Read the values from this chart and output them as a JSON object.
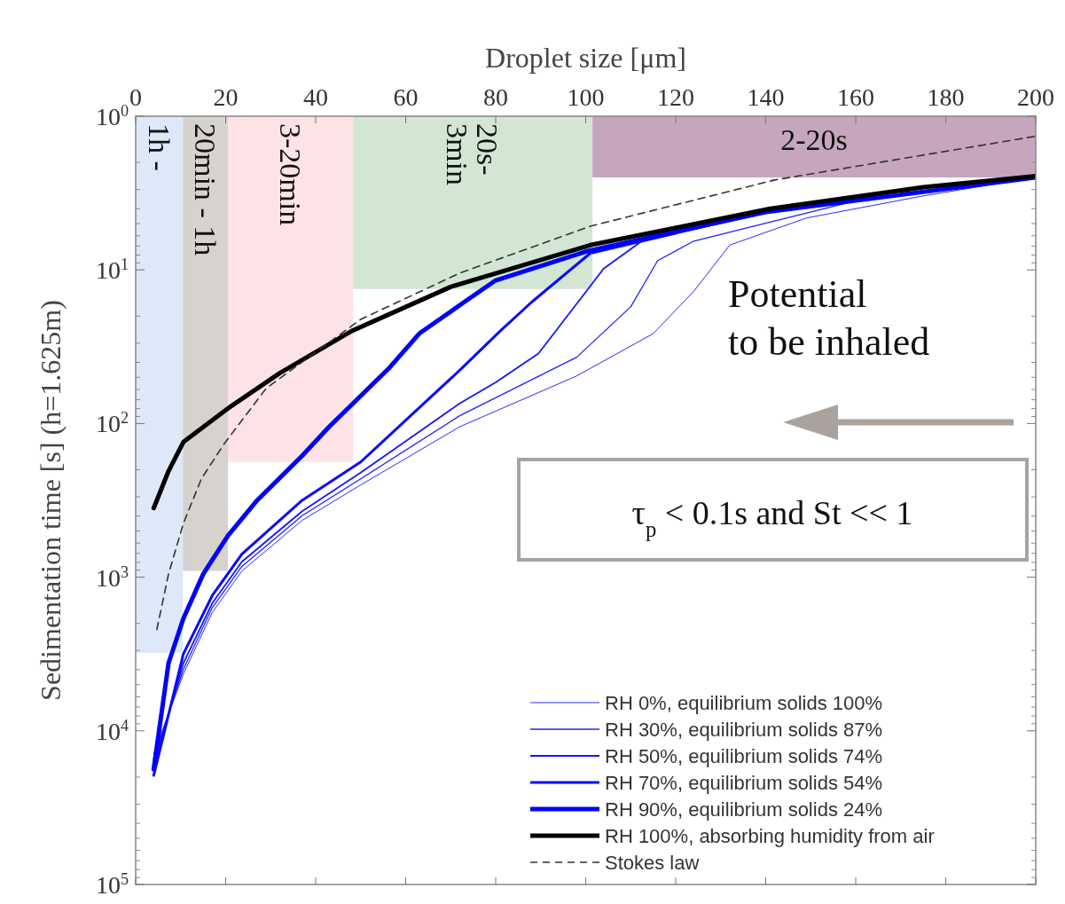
{
  "chart_data": {
    "type": "line",
    "xlabel": "Droplet size [μm]",
    "ylabel": "Sedimentation time [s] (h=1.625m)",
    "xlim": [
      0,
      200
    ],
    "xticks": [
      0,
      20,
      40,
      60,
      80,
      100,
      120,
      140,
      160,
      180,
      200
    ],
    "ylim": [
      100000,
      1
    ],
    "log": "y",
    "yticks": [
      {
        "value": 1,
        "label": "10$^{0}$"
      },
      {
        "value": 10,
        "label": "10$^{1}$"
      },
      {
        "value": 100,
        "label": "10$^{2}$"
      },
      {
        "value": 1000,
        "label": "10$^{3}$"
      },
      {
        "value": 10000,
        "label": "10$^{4}$"
      },
      {
        "value": 100000,
        "label": "10$^{5}$"
      }
    ],
    "legend": "bottom right",
    "grid": false,
    "series": [
      {
        "type": "area",
        "color": "#dde8f8",
        "x": [
          0,
          10.5
        ],
        "values": [
          3100,
          3100
        ]
      },
      {
        "type": "area",
        "color": "#d6d2ce",
        "x": [
          10.5,
          20.5
        ],
        "values": [
          910,
          910
        ]
      },
      {
        "type": "area",
        "color": "#fde3e5",
        "x": [
          20.5,
          48.3
        ],
        "values": [
          178,
          178
        ]
      },
      {
        "type": "area",
        "color": "#d2e6d3",
        "x": [
          48.3,
          101.5
        ],
        "values": [
          13.3,
          13.3
        ]
      },
      {
        "type": "area",
        "color": "#c6a6bf",
        "x": [
          101.5,
          200
        ],
        "values": [
          2.5,
          2.5
        ]
      },
      {
        "name": "RH 0%, equilibrium solids 100%",
        "color": "#2a2aff",
        "x": [
          4,
          10.6,
          17,
          23.6,
          37,
          50,
          72,
          98,
          115,
          124,
          132,
          149,
          175,
          200
        ],
        "values": [
          14100,
          4270,
          1700,
          912,
          427,
          251,
          105,
          49,
          26,
          13.8,
          6.9,
          4.6,
          3.3,
          2.5
        ]
      },
      {
        "name": "RH 30%, equilibrium solids 87%",
        "color": "#2020ff",
        "x": [
          4,
          10.6,
          17,
          23.6,
          37,
          50,
          72,
          98,
          110,
          116,
          124,
          160,
          200
        ],
        "values": [
          15100,
          3980,
          1580,
          851,
          398,
          229,
          89,
          37,
          17.4,
          8.7,
          6.5,
          3.55,
          2.5
        ]
      },
      {
        "name": "RH 50%, equilibrium solids 74%",
        "color": "#1414ff",
        "x": [
          4,
          10.6,
          17,
          23.6,
          37,
          50,
          72,
          80,
          89.5,
          104,
          115,
          150,
          200
        ],
        "values": [
          16600,
          3630,
          1480,
          794,
          372,
          209,
          74,
          54,
          35,
          9.8,
          5.75,
          3.8,
          2.5
        ]
      },
      {
        "name": "RH 70%, equilibrium solids 54%",
        "color": "#0a0aff",
        "x": [
          4,
          10.6,
          17,
          23.6,
          37,
          50,
          63,
          72,
          81,
          88,
          101,
          140,
          200
        ],
        "values": [
          19500,
          3160,
          1320,
          708,
          316,
          178,
          79,
          45,
          25,
          16.2,
          7.8,
          4.2,
          2.5
        ]
      },
      {
        "name": "RH 90%, equilibrium solids 24%",
        "color": "#0000ff",
        "x": [
          4,
          7.3,
          10.6,
          15,
          20.5,
          27,
          37,
          43,
          56.5,
          63,
          73,
          80,
          100,
          140,
          200
        ],
        "values": [
          17800,
          3630,
          1860,
          955,
          537,
          316,
          162,
          105,
          43,
          26,
          16.2,
          11.7,
          7.6,
          4.2,
          2.5
        ]
      },
      {
        "name": "RH 100%, absorbing humidity from air",
        "color": "#000000",
        "x": [
          4,
          4.7,
          7.3,
          10.6,
          20.7,
          32,
          48,
          70,
          101,
          141,
          175,
          200
        ],
        "values": [
          355,
          316,
          204,
          132,
          79,
          47,
          25,
          12.9,
          6.9,
          4.0,
          2.9,
          2.45
        ]
      },
      {
        "name": "Stokes law",
        "color": "#333333",
        "line_style": "dashed",
        "x": [
          4.7,
          7.3,
          10.6,
          14.6,
          19.7,
          29,
          50,
          72,
          101,
          142,
          200
        ],
        "values": [
          2190,
          955,
          447,
          229,
          135,
          59,
          21,
          10.5,
          5.2,
          2.6,
          1.35
        ]
      }
    ],
    "annotations": [
      "1h -",
      "20min - 1h",
      "3-20min",
      "20s-\n3min",
      "2-20s",
      "Potential to be inhaled",
      "τ$_{p}$ < 0.1s  and St << 1"
    ]
  }
}
